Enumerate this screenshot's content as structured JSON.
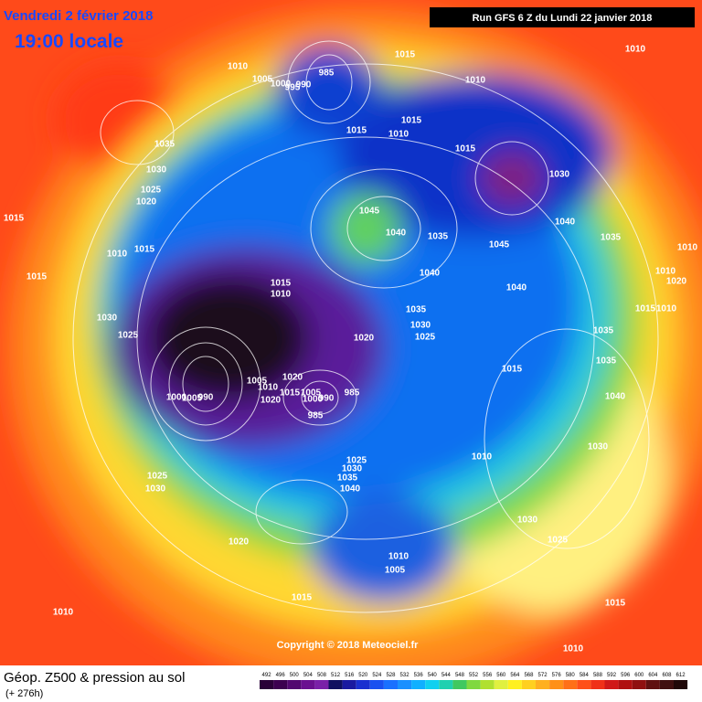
{
  "header": {
    "date": "Vendredi 2 février 2018",
    "time": "19:00 locale",
    "run": "Run GFS 6 Z du Lundi 22 janvier 2018"
  },
  "footer": {
    "title": "Géop. Z500 & pression au sol",
    "subtitle": "(+ 276h)",
    "copyright": "Copyright © 2018 Meteociel.fr"
  },
  "legend": {
    "levels": [
      "492",
      "496",
      "500",
      "504",
      "508",
      "512",
      "516",
      "520",
      "524",
      "528",
      "532",
      "536",
      "540",
      "544",
      "548",
      "552",
      "556",
      "560",
      "564",
      "568",
      "572",
      "576",
      "580",
      "584",
      "588",
      "592",
      "596",
      "600",
      "604",
      "608",
      "612"
    ]
  },
  "isobar_labels": [
    "1010",
    "1005",
    "1000",
    "995",
    "990",
    "985",
    "1015",
    "1010",
    "1010",
    "1035",
    "1030",
    "1025",
    "1020",
    "1015",
    "1015",
    "1010",
    "1015",
    "1015",
    "1030",
    "1045",
    "1040",
    "1035",
    "1040",
    "1045",
    "1035",
    "1010",
    "1015",
    "1015",
    "1040",
    "1040",
    "1015",
    "1010",
    "1030",
    "1035",
    "1030",
    "1025",
    "1020",
    "1025",
    "1035",
    "1015",
    "1010",
    "1010",
    "1020",
    "1010",
    "1035",
    "1015",
    "1005",
    "1020",
    "1010",
    "1015",
    "1020",
    "1005",
    "1000",
    "990",
    "985",
    "985",
    "1000",
    "1005",
    "990",
    "1040",
    "1030",
    "1010",
    "1025",
    "1030",
    "1035",
    "1040",
    "1025",
    "1030",
    "1020",
    "1030",
    "1025",
    "1010",
    "1005",
    "1015",
    "1015",
    "1010",
    "1010"
  ]
}
